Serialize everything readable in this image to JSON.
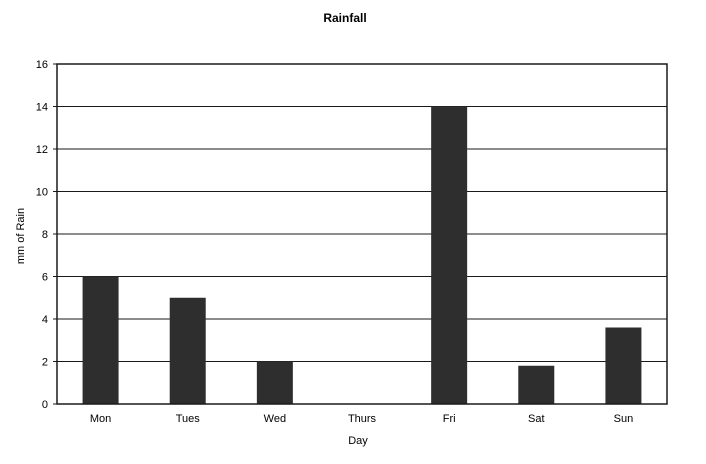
{
  "chart_data": {
    "type": "bar",
    "title": "Rainfall",
    "xlabel": "Day",
    "ylabel": "mm of Rain",
    "categories": [
      "Mon",
      "Tues",
      "Wed",
      "Thurs",
      "Fri",
      "Sat",
      "Sun"
    ],
    "values": [
      6,
      5,
      2,
      0,
      14,
      1.8,
      3.6
    ],
    "ylim": [
      0,
      16
    ],
    "yticks": [
      0,
      2,
      4,
      6,
      8,
      10,
      12,
      14,
      16
    ],
    "grid": true,
    "bar_color": "#2e2e2e",
    "grid_color": "#1a1a1a"
  }
}
